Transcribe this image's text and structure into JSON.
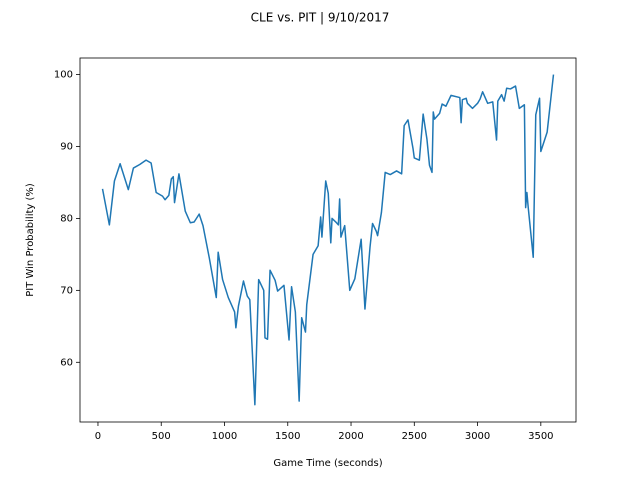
{
  "chart_data": {
    "type": "line",
    "title": "CLE vs. PIT | 9/10/2017",
    "x_label": "Game Time (seconds)",
    "y_label": "PIT Win Probability (%)",
    "x": [
      36,
      90,
      130,
      175,
      240,
      280,
      330,
      380,
      420,
      460,
      510,
      530,
      560,
      580,
      595,
      605,
      640,
      690,
      730,
      760,
      800,
      830,
      880,
      935,
      950,
      985,
      1030,
      1080,
      1090,
      1110,
      1150,
      1180,
      1200,
      1240,
      1270,
      1310,
      1320,
      1340,
      1360,
      1400,
      1420,
      1470,
      1510,
      1530,
      1560,
      1590,
      1610,
      1640,
      1650,
      1700,
      1740,
      1760,
      1770,
      1800,
      1820,
      1840,
      1850,
      1880,
      1900,
      1910,
      1920,
      1950,
      1990,
      2030,
      2080,
      2110,
      2150,
      2170,
      2200,
      2210,
      2240,
      2270,
      2310,
      2360,
      2400,
      2420,
      2450,
      2490,
      2500,
      2540,
      2570,
      2600,
      2620,
      2640,
      2650,
      2660,
      2700,
      2720,
      2750,
      2790,
      2860,
      2870,
      2880,
      2910,
      2920,
      2960,
      3000,
      3020,
      3040,
      3080,
      3120,
      3150,
      3160,
      3190,
      3210,
      3230,
      3260,
      3300,
      3330,
      3370,
      3380,
      3390,
      3400,
      3440,
      3460,
      3490,
      3500,
      3550,
      3600
    ],
    "series": [
      {
        "name": "PIT",
        "color": "#1f77b4",
        "values": [
          84.1,
          79.1,
          85.2,
          87.6,
          84,
          87,
          87.5,
          88.1,
          87.7,
          83.6,
          83.1,
          82.6,
          83.2,
          85.5,
          85.8,
          82.2,
          86.2,
          81,
          79.4,
          79.5,
          80.6,
          79,
          74.5,
          69,
          75.3,
          71.5,
          69,
          67,
          64.8,
          67.8,
          71.3,
          69.2,
          68.7,
          54.1,
          71.5,
          70,
          63.4,
          63.2,
          72.8,
          71.4,
          69.9,
          70.7,
          63.1,
          70.5,
          67,
          54.6,
          66.2,
          64.2,
          68,
          75,
          76.2,
          80.2,
          77.4,
          85.2,
          83.5,
          76.6,
          80,
          79.5,
          79.1,
          82.7,
          77.4,
          79,
          70,
          71.6,
          77.1,
          67.4,
          76,
          79.3,
          78.2,
          77.6,
          80.8,
          86.4,
          86.1,
          86.6,
          86.2,
          92.9,
          93.7,
          89.7,
          88.4,
          88.1,
          94.5,
          91,
          87.4,
          86.4,
          94.8,
          93.8,
          94.6,
          95.9,
          95.6,
          97.1,
          96.8,
          93.3,
          96.5,
          96.7,
          96,
          95.3,
          96,
          96.6,
          97.6,
          96,
          96.2,
          90.9,
          96.3,
          97.2,
          96.3,
          98.1,
          98,
          98.4,
          95.3,
          95.8,
          81.5,
          83.6,
          81.6,
          74.6,
          94.4,
          96.7,
          89.3,
          92,
          100
        ]
      }
    ],
    "xlim": [
      -142,
      3778
    ],
    "ylim": [
      51.7,
      102.3
    ],
    "xticks": [
      0,
      500,
      1000,
      1500,
      2000,
      2500,
      3000,
      3500
    ],
    "yticks": [
      60,
      70,
      80,
      90,
      100
    ],
    "grid": false
  }
}
